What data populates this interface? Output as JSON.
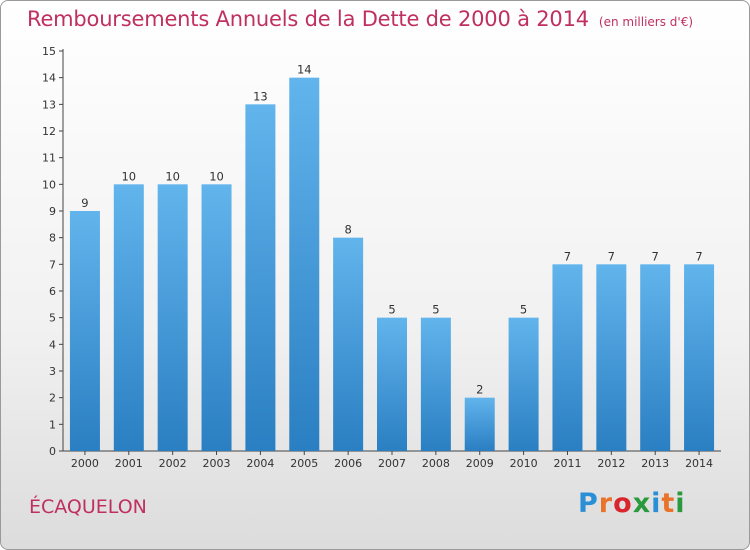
{
  "header": {
    "title": "Remboursements Annuels de la Dette de 2000 à 2014",
    "subtitle": "(en milliers d'€)"
  },
  "footer": {
    "commune": "ÉCAQUELON",
    "logo": {
      "letters": [
        "P",
        "r",
        "o",
        "x",
        "i",
        "t",
        "i"
      ],
      "colors": [
        "#2b8fd6",
        "#e9732a",
        "#d9262c",
        "#2a9a3e",
        "#2b8fd6",
        "#e9732a",
        "#2a9a3e"
      ]
    }
  },
  "chart_data": {
    "type": "bar",
    "categories": [
      "2000",
      "2001",
      "2002",
      "2003",
      "2004",
      "2005",
      "2006",
      "2007",
      "2008",
      "2009",
      "2010",
      "2011",
      "2012",
      "2013",
      "2014"
    ],
    "values": [
      9,
      10,
      10,
      10,
      13,
      14,
      8,
      5,
      5,
      2,
      5,
      7,
      7,
      7,
      7
    ],
    "data_labels": [
      "9",
      "10",
      "10",
      "10",
      "13",
      "14",
      "8",
      "5",
      "5",
      "2",
      "5",
      "7",
      "7",
      "7",
      "7"
    ],
    "yticks": [
      "0",
      "1",
      "2",
      "3",
      "4",
      "5",
      "6",
      "7",
      "8",
      "9",
      "10",
      "11",
      "12",
      "13",
      "14",
      "15"
    ],
    "ylim": [
      0,
      15
    ],
    "grid": false,
    "colors": {
      "bar_light": "#62b4ec",
      "bar_dark": "#2a7fc2",
      "title": "#c0305f"
    }
  }
}
